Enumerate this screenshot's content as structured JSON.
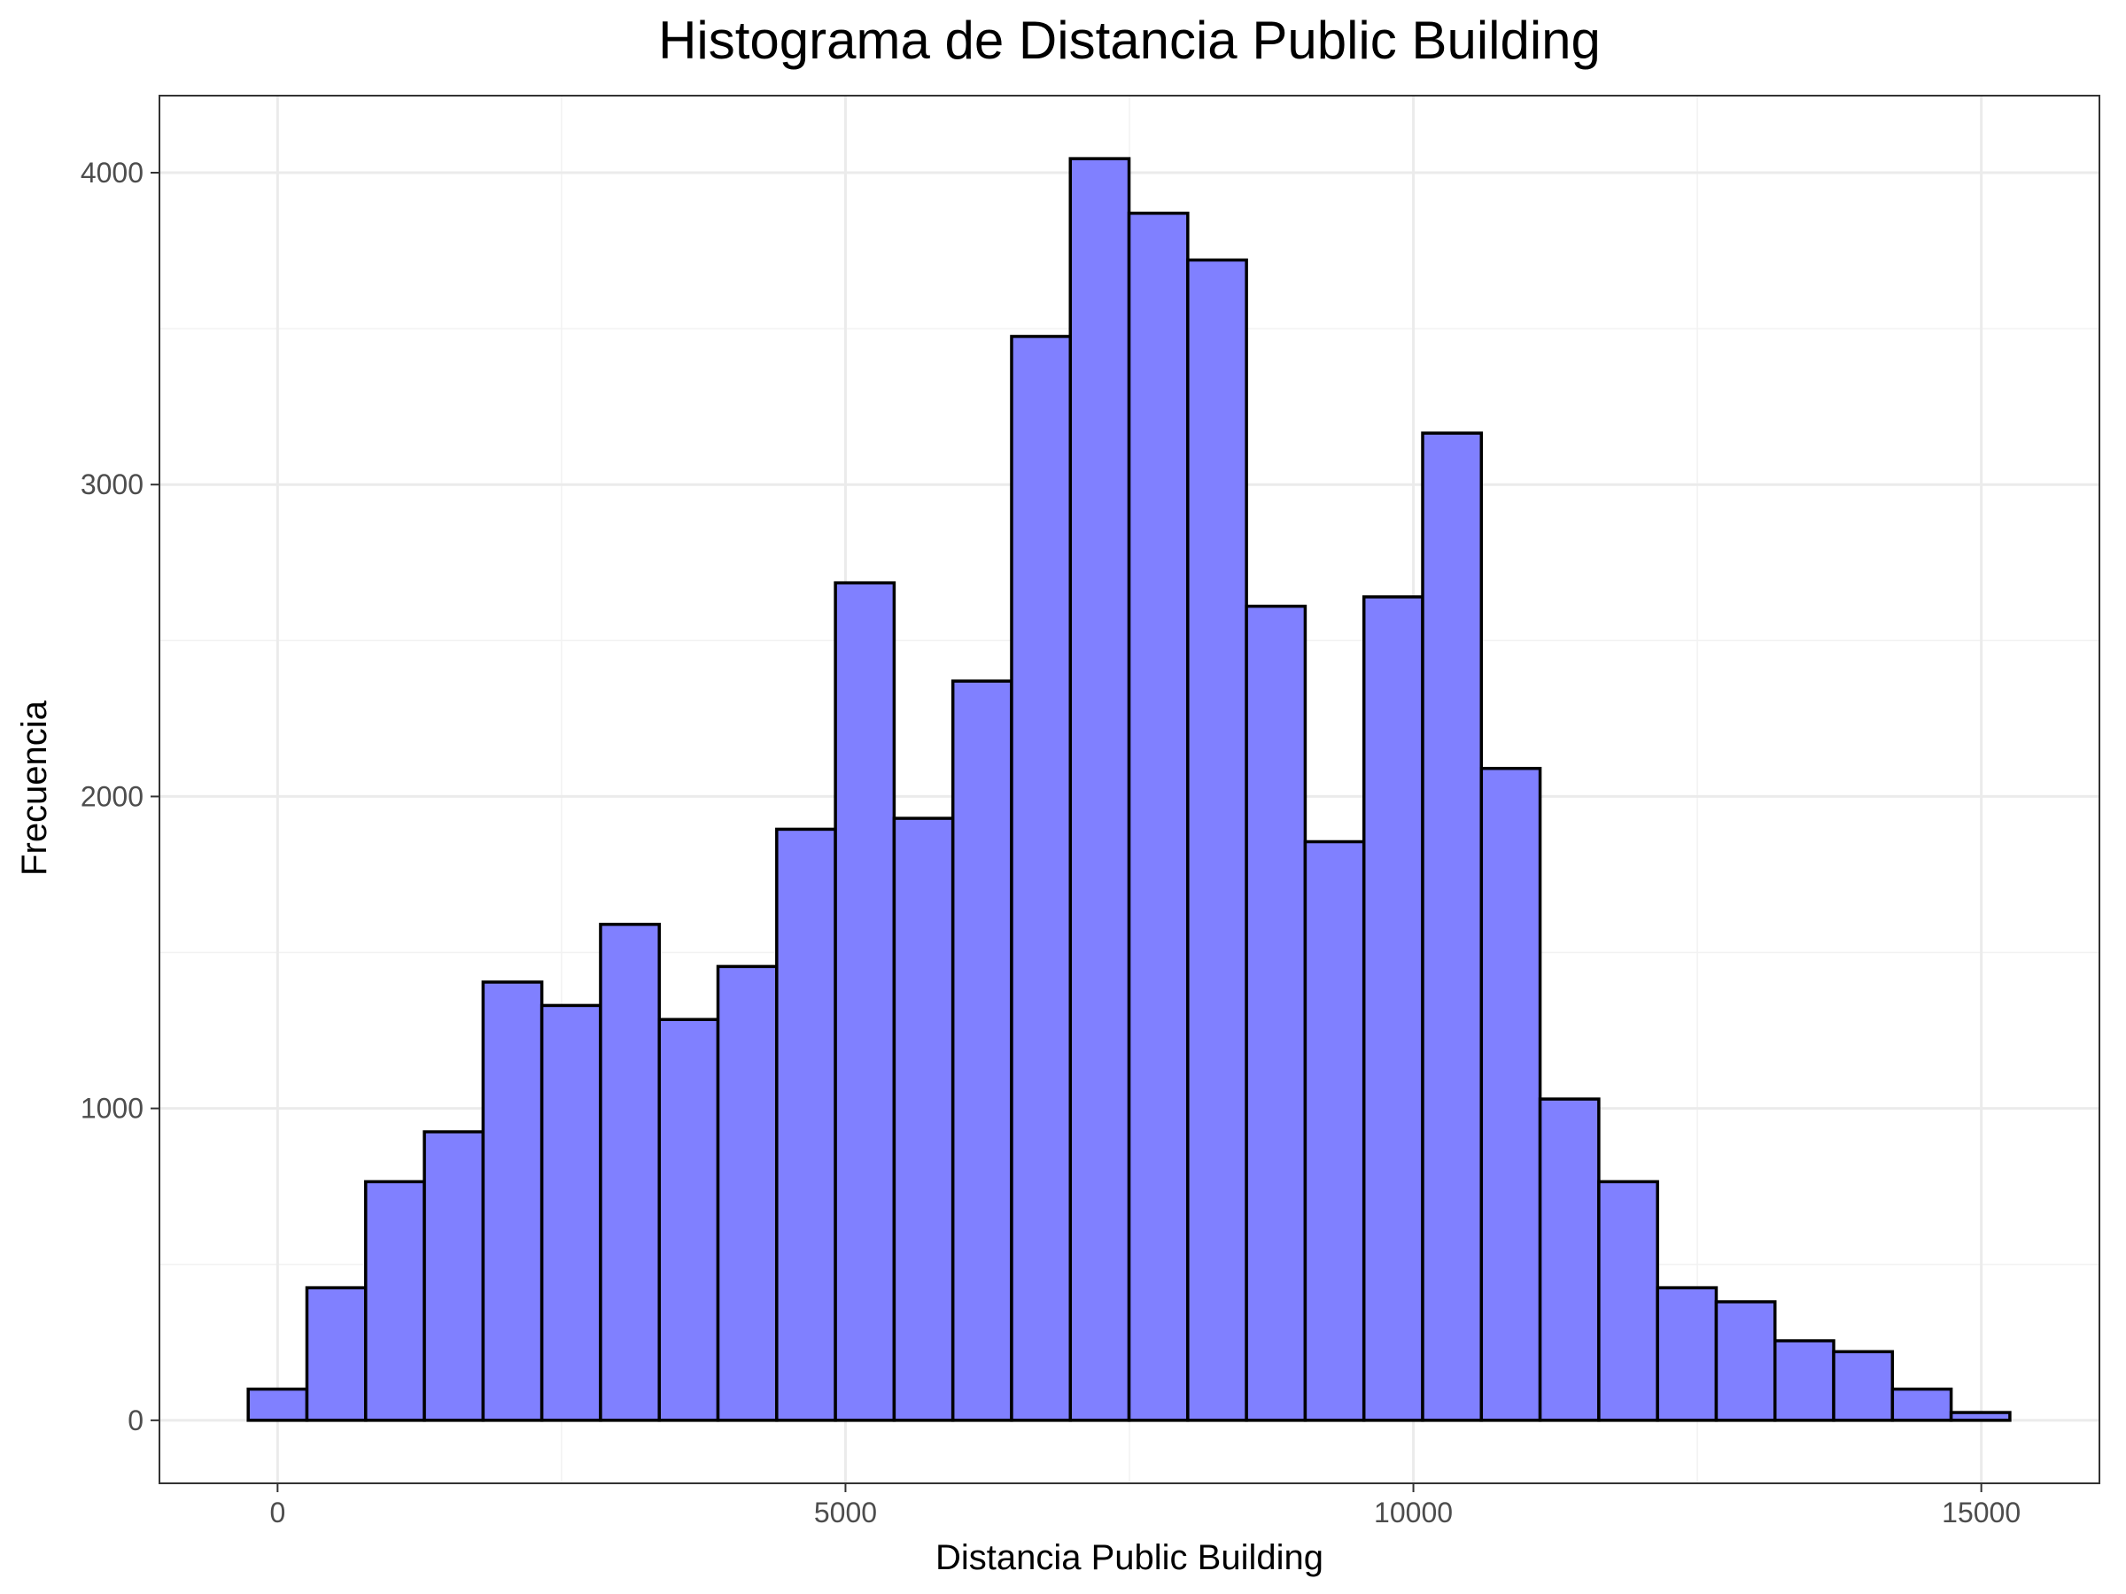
{
  "chart_data": {
    "type": "bar",
    "title": "Histograma de Distancia Public Building",
    "xlabel": "Distancia Public Building",
    "ylabel": "Frecuencia",
    "bin_width": 517,
    "bin_centers": [
      0,
      517,
      1034,
      1551,
      2068,
      2585,
      3102,
      3619,
      4136,
      4653,
      5170,
      5687,
      6204,
      6721,
      7238,
      7755,
      8272,
      8789,
      9306,
      9823,
      10340,
      10857,
      11374,
      11891,
      12408,
      12925,
      13442,
      13959,
      14476,
      14993
    ],
    "values": [
      100,
      425,
      765,
      925,
      1405,
      1330,
      1590,
      1285,
      1455,
      1895,
      2685,
      1930,
      2370,
      3475,
      4045,
      3870,
      3720,
      2610,
      1855,
      2640,
      3165,
      2090,
      1030,
      765,
      425,
      380,
      255,
      220,
      100,
      25
    ],
    "x_ticks": [
      0,
      5000,
      10000,
      15000
    ],
    "x_tick_labels": [
      "0",
      "5000",
      "10000",
      "15000"
    ],
    "y_ticks": [
      0,
      1000,
      2000,
      3000,
      4000
    ],
    "y_tick_labels": [
      "0",
      "1000",
      "2000",
      "3000",
      "4000"
    ],
    "xlim": [
      -1040,
      16040
    ],
    "ylim": [
      -202,
      4247
    ],
    "grid": true,
    "fill_color": "#8080ff",
    "stroke_color": "#000000"
  }
}
